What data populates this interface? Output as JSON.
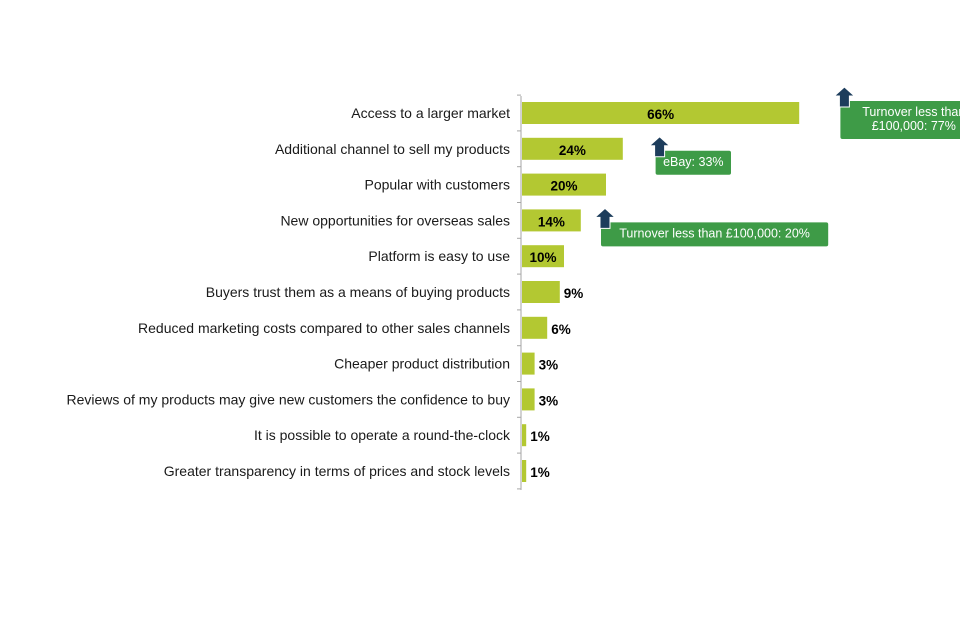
{
  "chart_data": {
    "type": "bar",
    "orientation": "horizontal",
    "categories": [
      "Access to a larger market",
      "Additional channel to sell my products",
      "Popular with customers",
      "New opportunities for overseas sales",
      "Platform is easy to use",
      "Buyers trust them as a means of buying products",
      "Reduced marketing costs compared to other sales channels",
      "Cheaper product distribution",
      "Reviews of my products may give new customers the confidence to buy",
      "It is possible to operate a round-the-clock",
      "Greater transparency in terms of prices and stock levels"
    ],
    "values": [
      66,
      24,
      20,
      14,
      10,
      9,
      6,
      3,
      3,
      1,
      1
    ],
    "value_labels": [
      "66%",
      "24%",
      "20%",
      "14%",
      "10%",
      "9%",
      "6%",
      "3%",
      "3%",
      "1%",
      "1%"
    ],
    "unit": "%",
    "xlim": [
      0,
      100
    ],
    "grid": false,
    "legend": "none",
    "annotations": [
      {
        "category_index": 0,
        "value": 77,
        "lines": [
          "Turnover less than",
          "£100,000: 77%"
        ]
      },
      {
        "category_index": 1,
        "value": 33,
        "lines": [
          "eBay: 33%"
        ]
      },
      {
        "category_index": 3,
        "value": 20,
        "lines": [
          "Turnover less than £100,000: 20%"
        ]
      }
    ],
    "colors": {
      "bar": "#b3c832",
      "callout": "#3e9b47",
      "arrow": "#1d3d5c",
      "axis": "#a6a6a6"
    }
  }
}
